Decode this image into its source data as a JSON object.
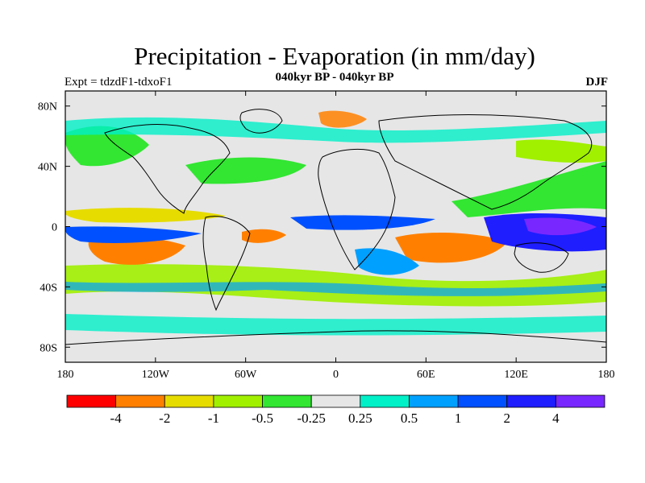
{
  "chart_data": {
    "type": "heatmap",
    "title": "Precipitation - Evaporation (in mm/day)",
    "subtitle": "040kyr BP - 040kyr BP",
    "left_string": "Expt = tdzdF1-tdxoF1",
    "right_string": "DJF",
    "x_ticks": [
      "180",
      "120W",
      "60W",
      "0",
      "60E",
      "120E",
      "180"
    ],
    "y_ticks": [
      "80N",
      "40N",
      "0",
      "40S",
      "80S"
    ],
    "colorbar": {
      "colors": [
        "#ff0000",
        "#ff8000",
        "#e6dc00",
        "#a0f000",
        "#32e632",
        "#e6e6e6",
        "#00f0c8",
        "#00a0ff",
        "#0050ff",
        "#1e1eff",
        "#7828ff"
      ],
      "labels": [
        "-4",
        "-2",
        "-1",
        "-0.5",
        "-0.25",
        "0.25",
        "0.5",
        "1",
        "2",
        "4"
      ]
    },
    "background_color": "#e6e6e6"
  }
}
